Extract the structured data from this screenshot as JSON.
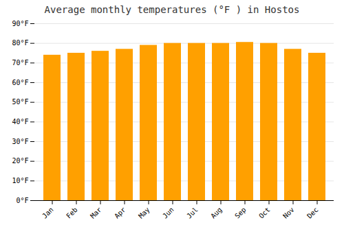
{
  "chart_data": {
    "type": "bar",
    "title": "Average monthly temperatures (°F ) in Hostos",
    "categories": [
      "Jan",
      "Feb",
      "Mar",
      "Apr",
      "May",
      "Jun",
      "Jul",
      "Aug",
      "Sep",
      "Oct",
      "Nov",
      "Dec"
    ],
    "values": [
      74,
      75,
      76,
      77,
      79,
      80,
      80,
      80,
      80.5,
      80,
      77,
      75
    ],
    "color": "#FFA000",
    "ylim": [
      0,
      90
    ],
    "yticks": [
      {
        "value": 0,
        "label": "0°F"
      },
      {
        "value": 10,
        "label": "10°F"
      },
      {
        "value": 20,
        "label": "20°F"
      },
      {
        "value": 30,
        "label": "30°F"
      },
      {
        "value": 40,
        "label": "40°F"
      },
      {
        "value": 50,
        "label": "50°F"
      },
      {
        "value": 60,
        "label": "60°F"
      },
      {
        "value": 70,
        "label": "70°F"
      },
      {
        "value": 80,
        "label": "80°F"
      },
      {
        "value": 90,
        "label": "90°F"
      }
    ],
    "grid": true
  }
}
